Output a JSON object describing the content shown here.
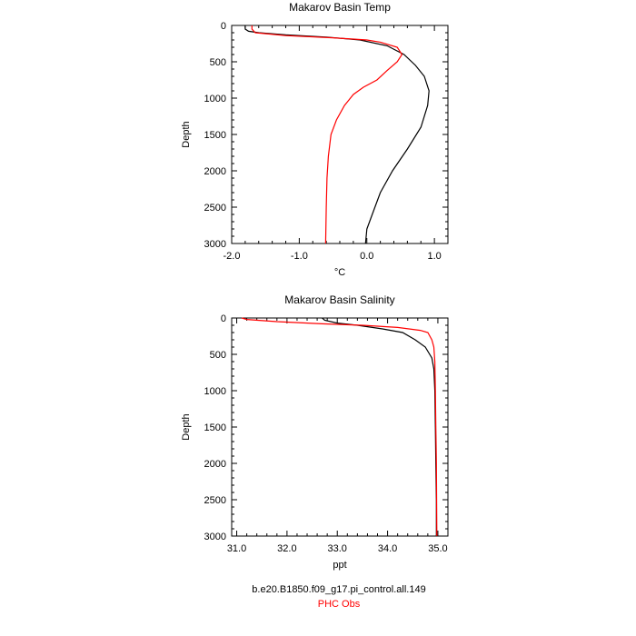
{
  "chart_data": [
    {
      "type": "line",
      "title": "Makarov Basin Temp",
      "xlabel": "°C",
      "ylabel": "Depth",
      "xlim": [
        -2.0,
        1.2
      ],
      "ylim": [
        3000,
        0
      ],
      "y_inverted": true,
      "xticks": [
        "-2.0",
        "-1.0",
        "0.0",
        "1.0"
      ],
      "yticks": [
        "0",
        "500",
        "1000",
        "1500",
        "2000",
        "2500",
        "3000"
      ],
      "grid": false,
      "series": [
        {
          "name": "b.e20.B1850.f09_g17.pi_control.all.149",
          "color": "#000000",
          "points": [
            [
              -1.8,
              0
            ],
            [
              -1.8,
              50
            ],
            [
              -1.75,
              80
            ],
            [
              -1.6,
              100
            ],
            [
              -1.2,
              130
            ],
            [
              -0.6,
              160
            ],
            [
              -0.1,
              200
            ],
            [
              0.3,
              280
            ],
            [
              0.55,
              400
            ],
            [
              0.72,
              550
            ],
            [
              0.85,
              700
            ],
            [
              0.92,
              900
            ],
            [
              0.9,
              1100
            ],
            [
              0.8,
              1400
            ],
            [
              0.6,
              1700
            ],
            [
              0.38,
              2000
            ],
            [
              0.2,
              2300
            ],
            [
              0.08,
              2600
            ],
            [
              0.0,
              2800
            ],
            [
              -0.02,
              3000
            ]
          ]
        },
        {
          "name": "PHC Obs",
          "color": "#ff0000",
          "points": [
            [
              -1.7,
              0
            ],
            [
              -1.7,
              50
            ],
            [
              -1.65,
              100
            ],
            [
              -1.2,
              140
            ],
            [
              -0.5,
              170
            ],
            [
              0.0,
              200
            ],
            [
              0.2,
              230
            ],
            [
              0.45,
              300
            ],
            [
              0.52,
              400
            ],
            [
              0.45,
              500
            ],
            [
              0.3,
              620
            ],
            [
              0.15,
              750
            ],
            [
              -0.05,
              850
            ],
            [
              -0.2,
              950
            ],
            [
              -0.33,
              1100
            ],
            [
              -0.45,
              1300
            ],
            [
              -0.53,
              1500
            ],
            [
              -0.57,
              1800
            ],
            [
              -0.59,
              2100
            ],
            [
              -0.6,
              2500
            ],
            [
              -0.61,
              3000
            ]
          ]
        }
      ]
    },
    {
      "type": "line",
      "title": "Makarov Basin Salinity",
      "xlabel": "ppt",
      "ylabel": "Depth",
      "xlim": [
        30.9,
        35.2
      ],
      "ylim": [
        3000,
        0
      ],
      "y_inverted": true,
      "xticks": [
        "31.0",
        "32.0",
        "33.0",
        "34.0",
        "35.0"
      ],
      "yticks": [
        "0",
        "500",
        "1000",
        "1500",
        "2000",
        "2500",
        "3000"
      ],
      "grid": false,
      "series": [
        {
          "name": "b.e20.B1850.f09_g17.pi_control.all.149",
          "color": "#000000",
          "points": [
            [
              32.7,
              0
            ],
            [
              32.75,
              30
            ],
            [
              33.0,
              70
            ],
            [
              33.4,
              100
            ],
            [
              33.9,
              150
            ],
            [
              34.3,
              200
            ],
            [
              34.55,
              300
            ],
            [
              34.75,
              400
            ],
            [
              34.88,
              550
            ],
            [
              34.92,
              700
            ],
            [
              34.94,
              1000
            ],
            [
              34.95,
              1500
            ],
            [
              34.96,
              2000
            ],
            [
              34.97,
              2500
            ],
            [
              34.97,
              3000
            ]
          ]
        },
        {
          "name": "PHC Obs",
          "color": "#ff0000",
          "points": [
            [
              31.1,
              0
            ],
            [
              31.2,
              20
            ],
            [
              31.8,
              50
            ],
            [
              32.7,
              80
            ],
            [
              33.5,
              100
            ],
            [
              34.2,
              130
            ],
            [
              34.65,
              170
            ],
            [
              34.8,
              200
            ],
            [
              34.88,
              300
            ],
            [
              34.92,
              400
            ],
            [
              34.94,
              600
            ],
            [
              34.95,
              1000
            ],
            [
              34.96,
              1500
            ],
            [
              34.97,
              2000
            ],
            [
              34.98,
              3000
            ]
          ]
        }
      ]
    }
  ],
  "legend": {
    "entries": [
      {
        "text": "b.e20.B1850.f09_g17.pi_control.all.149",
        "color": "#000000"
      },
      {
        "text": "PHC Obs",
        "color": "#ff0000"
      }
    ],
    "placement": "bottom-center"
  }
}
